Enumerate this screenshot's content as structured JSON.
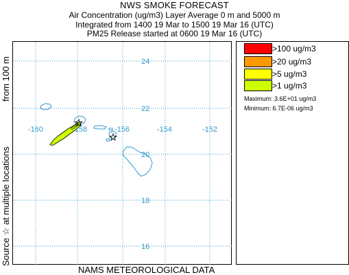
{
  "title": {
    "main": "NWS SMOKE FORECAST",
    "line1": "Air Concentration (ug/m3) Layer Average     0 m and  5000 m",
    "line2": "Integrated from 1400 19 Mar to 1500 19 Mar 16 (UTC)",
    "line3": "PM25 Release started at 0600 19 Mar 16 (UTC)"
  },
  "side_label": {
    "bottom_text": "Source ☆    at multiple locations",
    "top_text": "from  100 m"
  },
  "footer": {
    "text": "NAMS METEOROLOGICAL DATA"
  },
  "map": {
    "latitude_labels": [
      "24",
      "22",
      "20",
      "18",
      "16"
    ],
    "longitude_labels": [
      "-160",
      "-158",
      "-156",
      "-154",
      "-152"
    ],
    "grid_color": "#3399cc",
    "coastline_color": "#3399cc",
    "plume_color": "#ccff00",
    "plume_outline": "#000000"
  },
  "legend": {
    "items": [
      {
        "label": ">100 ug/m3",
        "color": "#ff0000"
      },
      {
        "label": ">20 ug/m3",
        "color": "#ff9900"
      },
      {
        "label": ">5 ug/m3",
        "color": "#ffff00"
      },
      {
        "label": ">1 ug/m3",
        "color": "#ccff00"
      }
    ],
    "maximum": "Maximum: 3.6E+01 ug/m3",
    "minimum": "Minimum: 6.7E-06 ug/m3"
  }
}
